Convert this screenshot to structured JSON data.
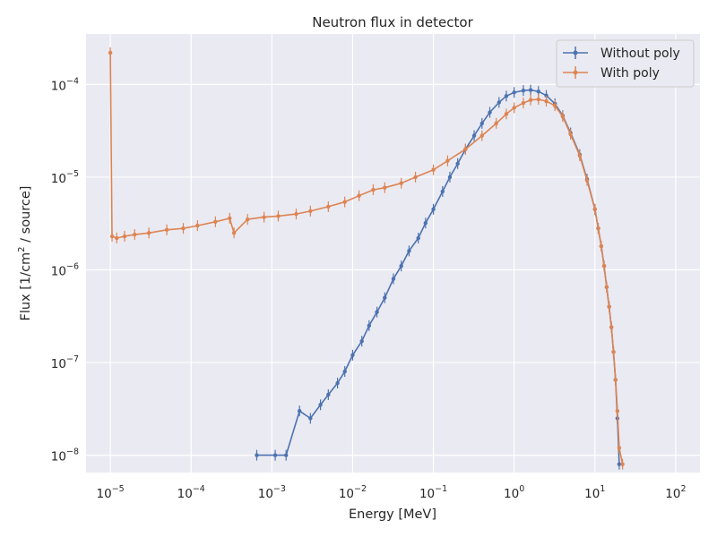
{
  "chart_data": {
    "type": "line",
    "title": "Neutron flux in detector",
    "xlabel": "Energy [MeV]",
    "ylabel_parts": [
      "Flux [1/cm",
      "2",
      " / source]"
    ],
    "xscale": "log",
    "yscale": "log",
    "xlim": [
      5e-06,
      200
    ],
    "ylim": [
      6.5e-09,
      0.00035
    ],
    "x_ticks": [
      {
        "value": 1e-05,
        "base": "10",
        "exp": "−5"
      },
      {
        "value": 0.0001,
        "base": "10",
        "exp": "−4"
      },
      {
        "value": 0.001,
        "base": "10",
        "exp": "−3"
      },
      {
        "value": 0.01,
        "base": "10",
        "exp": "−2"
      },
      {
        "value": 0.1,
        "base": "10",
        "exp": "−1"
      },
      {
        "value": 1,
        "base": "10",
        "exp": "0"
      },
      {
        "value": 10,
        "base": "10",
        "exp": "1"
      },
      {
        "value": 100,
        "base": "10",
        "exp": "2"
      }
    ],
    "y_ticks": [
      {
        "value": 1e-08,
        "base": "10",
        "exp": "−8"
      },
      {
        "value": 1e-07,
        "base": "10",
        "exp": "−7"
      },
      {
        "value": 1e-06,
        "base": "10",
        "exp": "−6"
      },
      {
        "value": 1e-05,
        "base": "10",
        "exp": "−5"
      },
      {
        "value": 0.0001,
        "base": "10",
        "exp": "−4"
      }
    ],
    "grid": true,
    "legend_position": "top-right",
    "series": [
      {
        "name": "Without poly",
        "color": "#4c72b0",
        "x": [
          0.00065,
          0.0011,
          0.0015,
          0.0022,
          0.003,
          0.004,
          0.005,
          0.0065,
          0.008,
          0.01,
          0.013,
          0.016,
          0.02,
          0.025,
          0.032,
          0.04,
          0.05,
          0.065,
          0.08,
          0.1,
          0.13,
          0.16,
          0.2,
          0.25,
          0.32,
          0.4,
          0.5,
          0.65,
          0.8,
          1.0,
          1.3,
          1.6,
          2.0,
          2.5,
          3.2,
          4.0,
          5.0,
          6.5,
          8.0,
          10.0,
          11.0,
          12.0,
          13.0,
          14.0,
          15.0,
          16.0,
          17.0,
          18.0,
          19.0,
          20.0
        ],
        "y": [
          1e-08,
          1e-08,
          1e-08,
          3e-08,
          2.5e-08,
          3.5e-08,
          4.5e-08,
          6e-08,
          8e-08,
          1.2e-07,
          1.7e-07,
          2.5e-07,
          3.5e-07,
          5e-07,
          8e-07,
          1.1e-06,
          1.6e-06,
          2.2e-06,
          3.2e-06,
          4.5e-06,
          7e-06,
          1e-05,
          1.4e-05,
          2e-05,
          2.8e-05,
          3.8e-05,
          5e-05,
          6.4e-05,
          7.5e-05,
          8.2e-05,
          8.6e-05,
          8.7e-05,
          8.4e-05,
          7.6e-05,
          6.2e-05,
          4.6e-05,
          3e-05,
          1.75e-05,
          9.5e-06,
          4.5e-06,
          2.8e-06,
          1.8e-06,
          1.1e-06,
          6.5e-07,
          4e-07,
          2.4e-07,
          1.3e-07,
          6.5e-08,
          2.5e-08,
          8e-09
        ]
      },
      {
        "name": "With poly",
        "color": "#dd8452",
        "x": [
          1e-05,
          1.05e-05,
          1.2e-05,
          1.5e-05,
          2e-05,
          3e-05,
          5e-05,
          8e-05,
          0.00012,
          0.0002,
          0.0003,
          0.00034,
          0.0005,
          0.0008,
          0.0012,
          0.002,
          0.003,
          0.005,
          0.008,
          0.012,
          0.018,
          0.025,
          0.04,
          0.06,
          0.1,
          0.15,
          0.25,
          0.4,
          0.6,
          0.8,
          1.0,
          1.3,
          1.6,
          2.0,
          2.5,
          3.2,
          4.0,
          5.0,
          6.5,
          8.0,
          10.0,
          11.0,
          12.0,
          13.0,
          14.0,
          15.0,
          16.0,
          17.0,
          18.0,
          19.0,
          20.0,
          22.0
        ],
        "y": [
          0.00022,
          2.3e-06,
          2.2e-06,
          2.3e-06,
          2.4e-06,
          2.5e-06,
          2.7e-06,
          2.8e-06,
          3e-06,
          3.3e-06,
          3.6e-06,
          2.5e-06,
          3.5e-06,
          3.7e-06,
          3.8e-06,
          4e-06,
          4.3e-06,
          4.8e-06,
          5.4e-06,
          6.3e-06,
          7.3e-06,
          7.7e-06,
          8.6e-06,
          1e-05,
          1.2e-05,
          1.5e-05,
          2e-05,
          2.8e-05,
          3.8e-05,
          4.8e-05,
          5.6e-05,
          6.3e-05,
          6.8e-05,
          6.9e-05,
          6.6e-05,
          5.9e-05,
          4.5e-05,
          2.9e-05,
          1.7e-05,
          9.2e-06,
          4.5e-06,
          2.8e-06,
          1.8e-06,
          1.1e-06,
          6.5e-07,
          4e-07,
          2.4e-07,
          1.3e-07,
          6.5e-08,
          3e-08,
          1.2e-08,
          8e-09
        ]
      }
    ]
  }
}
